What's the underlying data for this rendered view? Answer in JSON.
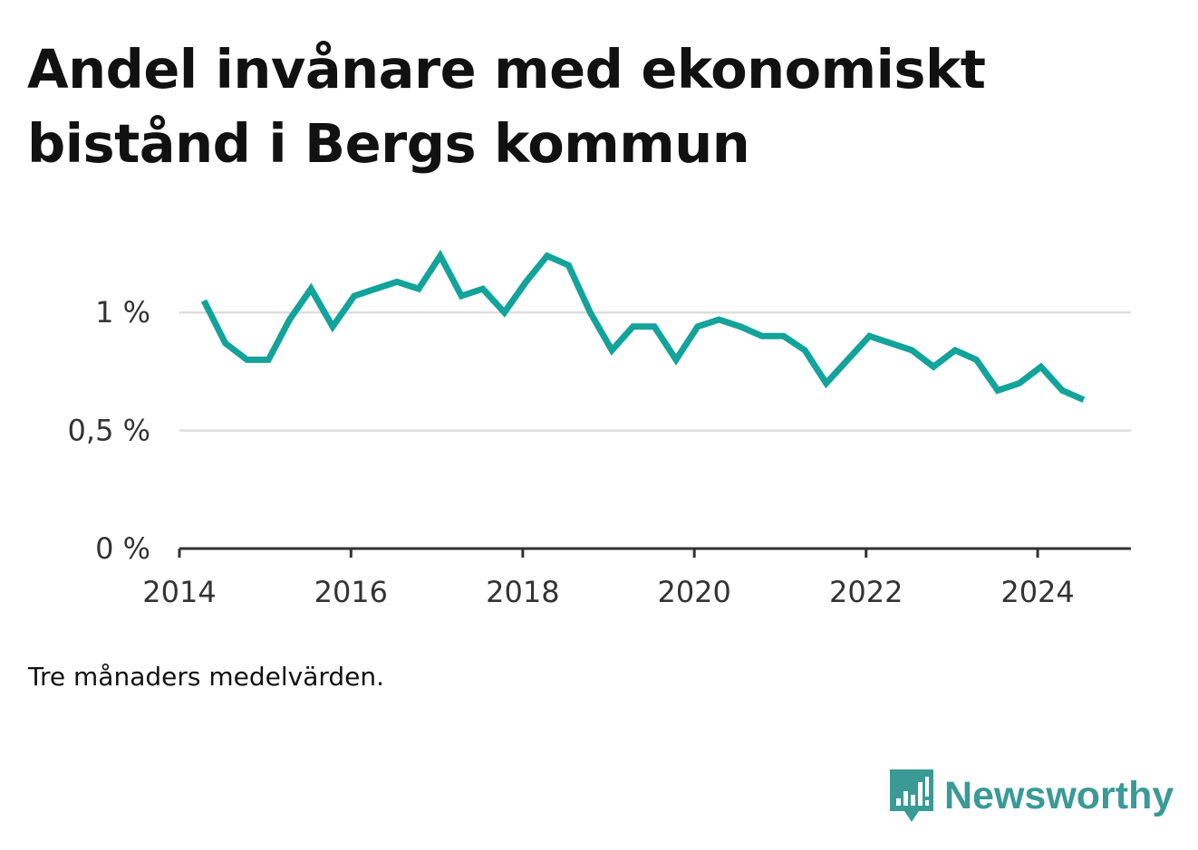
{
  "title": "Andel invånare med ekonomiskt bistånd i Bergs kommun",
  "note": "Tre månaders medelvärden.",
  "brand": {
    "name": "Newsworthy",
    "icon": "newsworthy-logo-icon",
    "color": "#3a9a96"
  },
  "chart_data": {
    "type": "line",
    "title": "Andel invånare med ekonomiskt bistånd i Bergs kommun",
    "xlabel": "",
    "ylabel": "",
    "line_color": "#12a39a",
    "grid": true,
    "xlim": [
      "2014-01-01",
      "2025-02-01"
    ],
    "ylim": [
      0,
      1.25
    ],
    "x_ticks": [
      {
        "x": "2014-01-01",
        "label": "2014"
      },
      {
        "x": "2016-01-01",
        "label": "2016"
      },
      {
        "x": "2018-01-01",
        "label": "2018"
      },
      {
        "x": "2020-01-01",
        "label": "2020"
      },
      {
        "x": "2022-01-01",
        "label": "2022"
      },
      {
        "x": "2024-01-01",
        "label": "2024"
      }
    ],
    "y_ticks": [
      {
        "y": 0,
        "label": "0 %"
      },
      {
        "y": 0.5,
        "label": "0,5 %"
      },
      {
        "y": 1,
        "label": "1 %"
      }
    ],
    "series": [
      {
        "x": [
          "2014-04-15",
          "2014-07-15",
          "2014-10-15",
          "2015-01-15",
          "2015-04-15",
          "2015-07-15",
          "2015-10-15",
          "2016-01-15",
          "2016-04-15",
          "2016-07-15",
          "2016-10-15",
          "2017-01-15",
          "2017-04-15",
          "2017-07-15",
          "2017-10-15",
          "2018-01-15",
          "2018-04-15",
          "2018-07-15",
          "2018-10-15",
          "2019-01-15",
          "2019-04-15",
          "2019-07-15",
          "2019-10-15",
          "2020-01-15",
          "2020-04-15",
          "2020-07-15",
          "2020-10-15",
          "2021-01-15",
          "2021-04-15",
          "2021-07-15",
          "2021-10-15",
          "2022-01-15",
          "2022-04-15",
          "2022-07-15",
          "2022-10-15",
          "2023-01-15",
          "2023-04-15",
          "2023-07-15",
          "2023-10-15",
          "2024-01-15",
          "2024-04-15",
          "2024-07-15"
        ],
        "y": [
          1.05,
          0.87,
          0.8,
          0.8,
          0.97,
          1.1,
          0.94,
          1.07,
          1.1,
          1.13,
          1.1,
          1.24,
          1.07,
          1.1,
          1.0,
          1.13,
          1.24,
          1.2,
          1.0,
          0.84,
          0.94,
          0.94,
          0.8,
          0.94,
          0.97,
          0.94,
          0.9,
          0.9,
          0.84,
          0.7,
          0.8,
          0.9,
          0.87,
          0.84,
          0.77,
          0.84,
          0.8,
          0.67,
          0.7,
          0.77,
          0.67,
          0.63
        ]
      }
    ]
  }
}
